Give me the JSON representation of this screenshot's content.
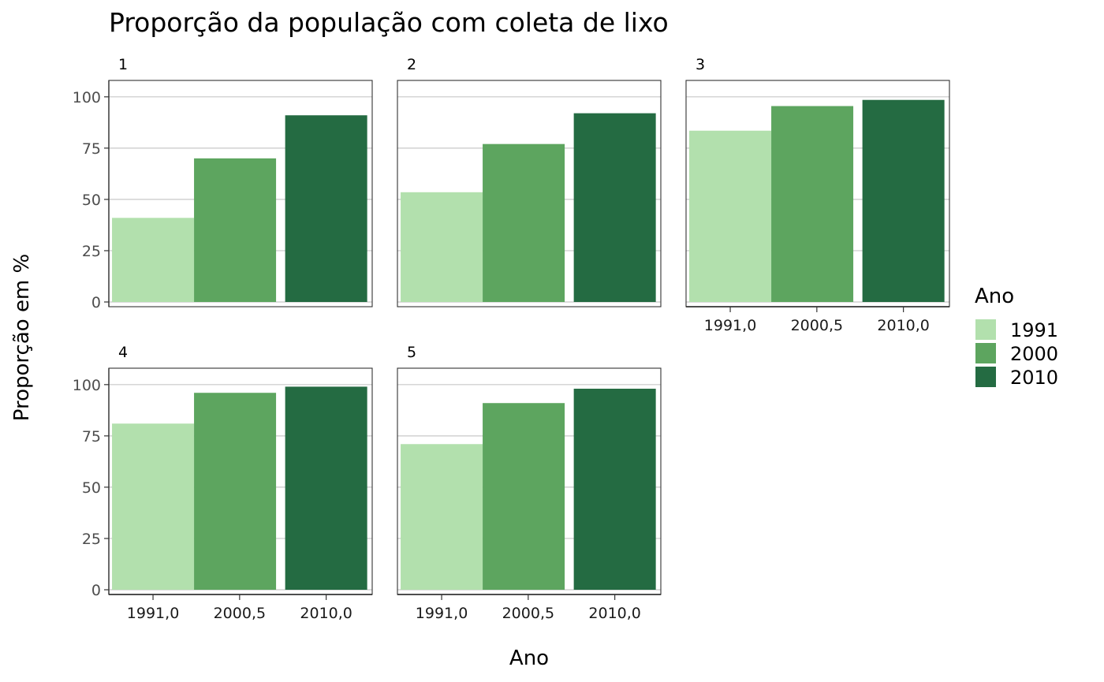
{
  "chart_data": {
    "type": "bar",
    "title": "Proporção da população com coleta de lixo",
    "xlabel": "Ano",
    "ylabel": "Proporção em %",
    "ylim": [
      0,
      108
    ],
    "yticks": [
      0,
      25,
      50,
      75,
      100
    ],
    "xtick_labels": [
      "1991,0",
      "2000,5",
      "2010,0"
    ],
    "x": [
      1991,
      2000,
      2010
    ],
    "grid": true,
    "legend": {
      "title": "Ano",
      "placement": "right",
      "entries": [
        {
          "label": "1991",
          "color": "#b2e0ad"
        },
        {
          "label": "2000",
          "color": "#5da55f"
        },
        {
          "label": "2010",
          "color": "#246b42"
        }
      ]
    },
    "facets": [
      {
        "label": "1",
        "values": [
          41,
          70,
          91
        ]
      },
      {
        "label": "2",
        "values": [
          53.5,
          77,
          92
        ]
      },
      {
        "label": "3",
        "values": [
          83.5,
          95.5,
          98.5
        ]
      },
      {
        "label": "4",
        "values": [
          81,
          96,
          99
        ]
      },
      {
        "label": "5",
        "values": [
          71,
          91,
          98
        ]
      }
    ]
  }
}
